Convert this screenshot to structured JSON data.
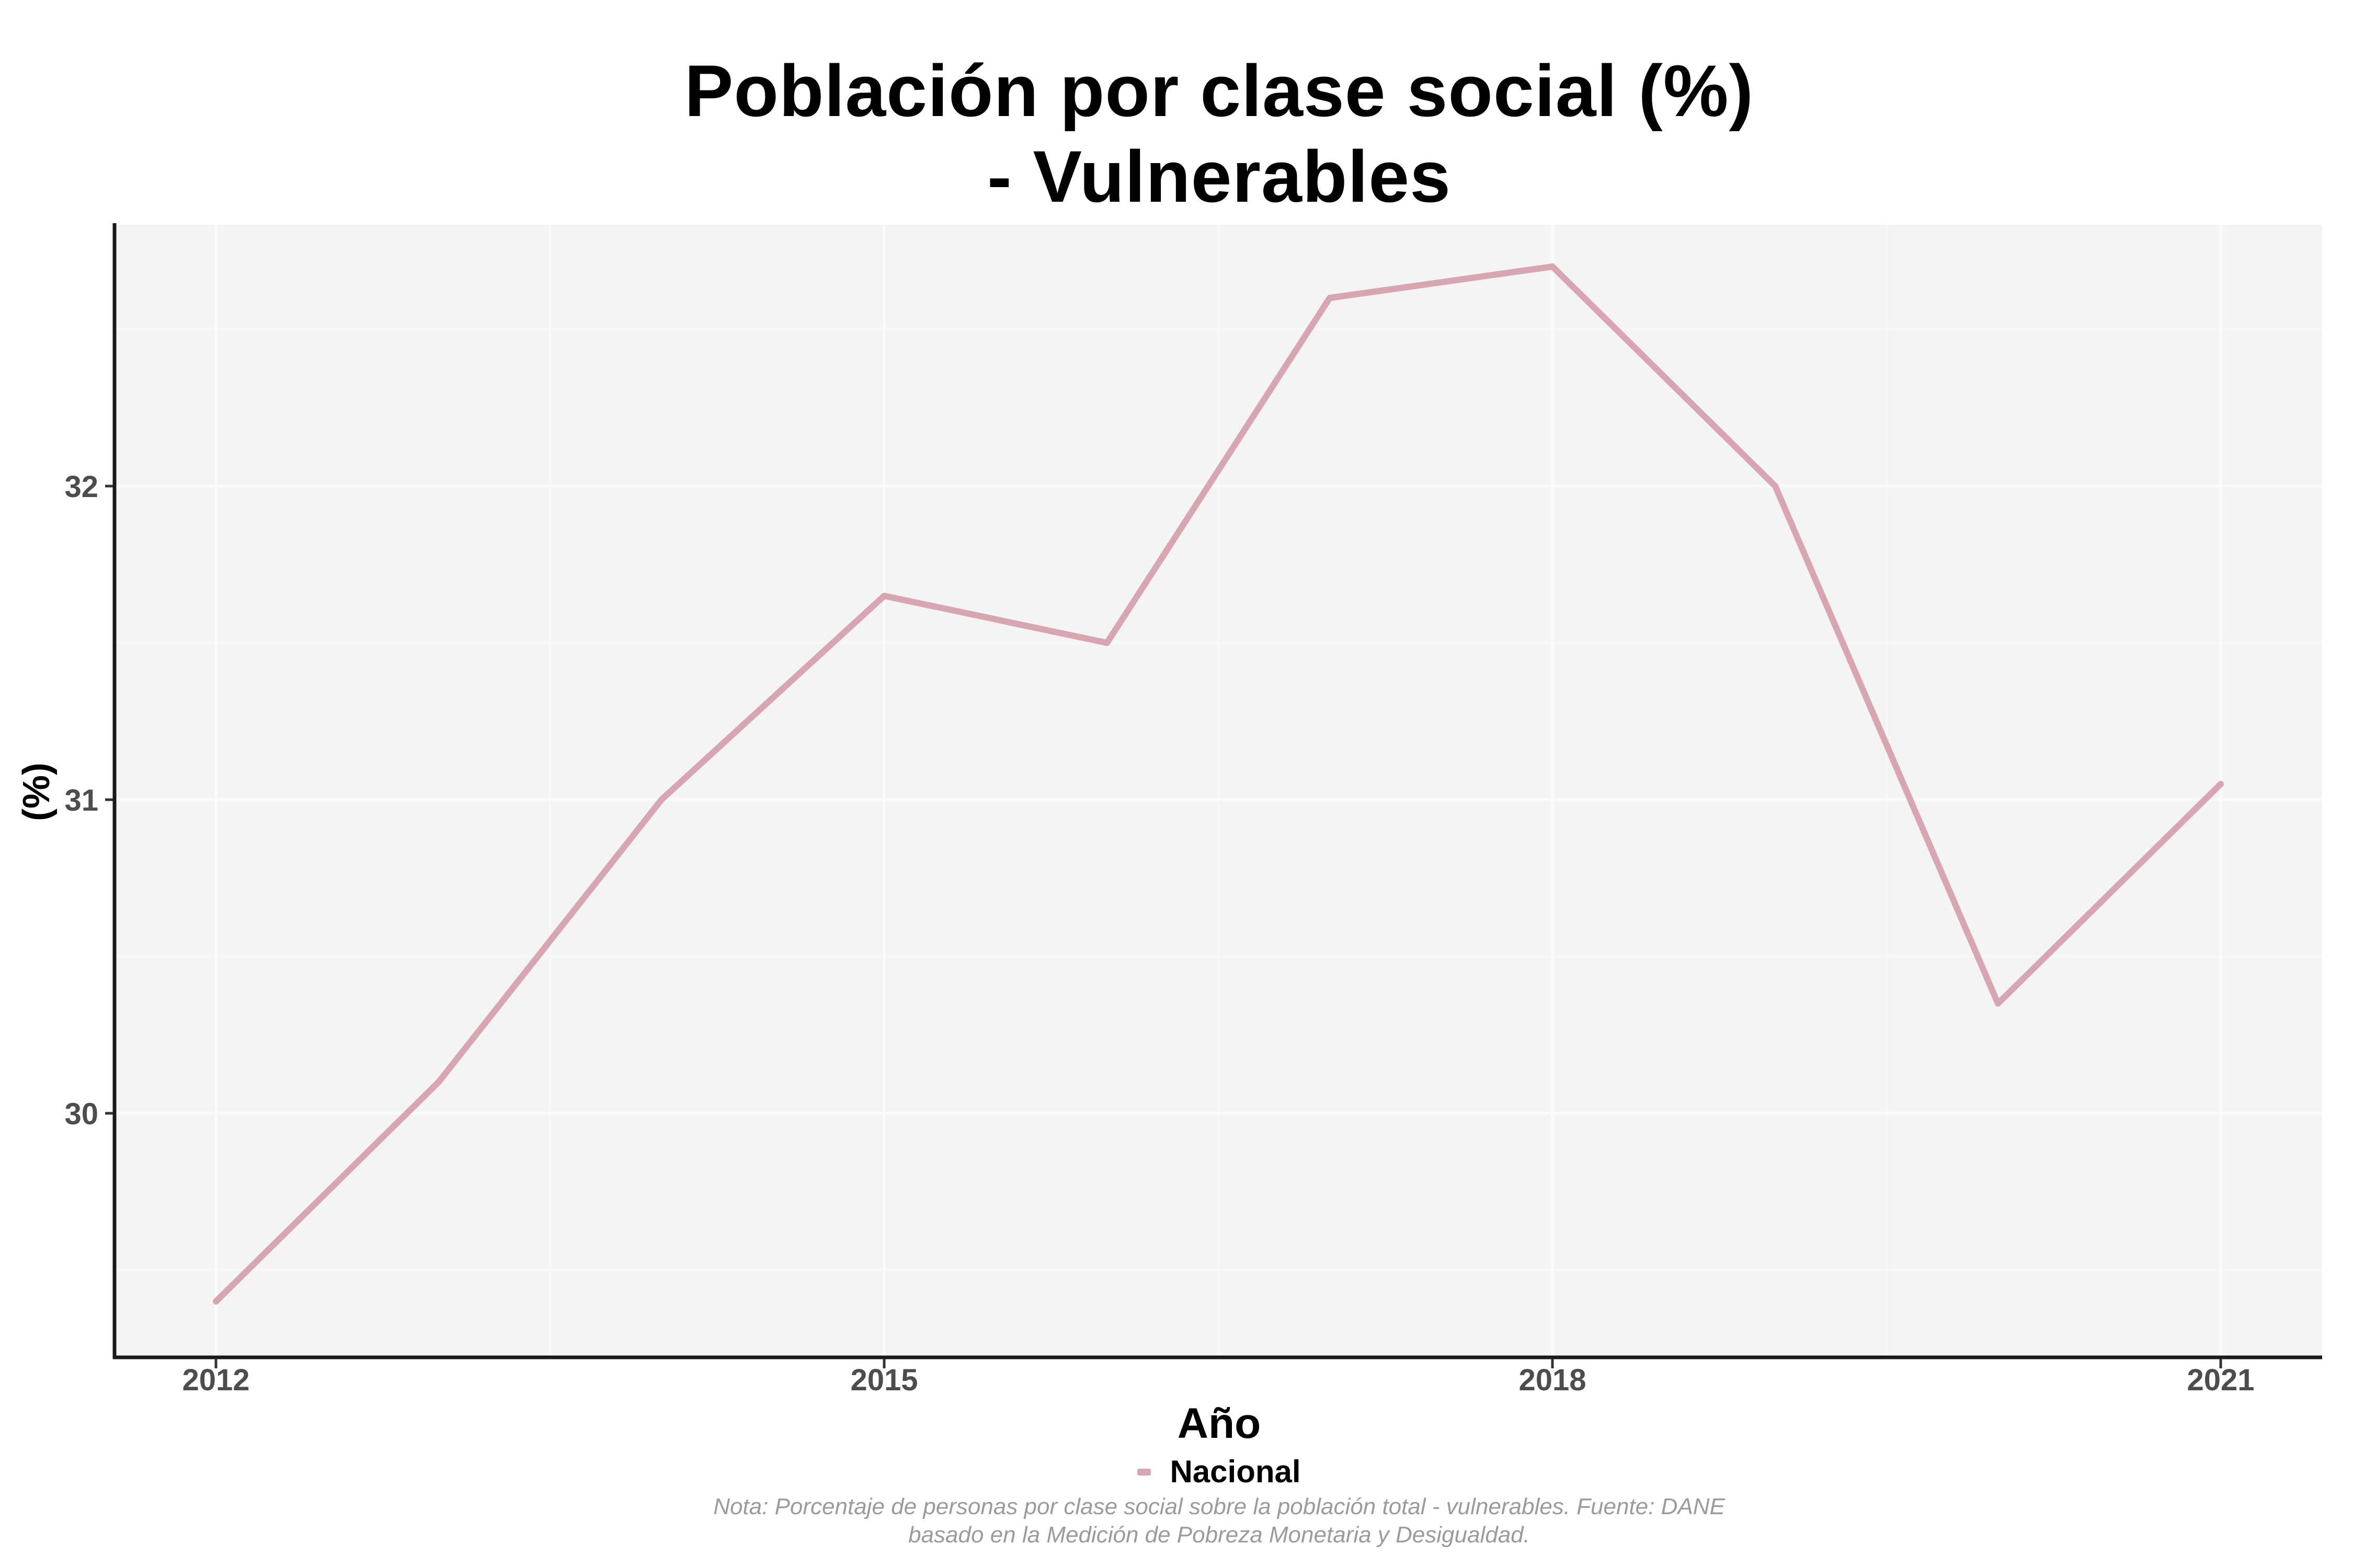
{
  "title": {
    "line1": "Población por clase social (%)",
    "line2": "- Vulnerables"
  },
  "legend": {
    "label": "Nacional"
  },
  "footnote": {
    "line1": "Nota: Porcentaje de personas por clase social sobre la población total - vulnerables. Fuente: DANE",
    "line2": "basado en la Medición de Pobreza Monetaria y Desigualdad."
  },
  "colors": {
    "line": "#d8a6b0",
    "panel_background": "#f4f4f4",
    "grid_major": "#fbfbfb",
    "grid_minor": "#f8f8f8",
    "axis_line": "#1a1a1a",
    "tick_mark": "#333333",
    "tick_label": "#4d4d4d",
    "title_text": "#000000",
    "footnote_text": "#9b9b9b"
  },
  "chart_data": {
    "type": "line",
    "title": "Población por clase social (%) - Vulnerables",
    "xlabel": "Año",
    "ylabel": "(%)",
    "x": [
      2012,
      2013,
      2014,
      2015,
      2016,
      2017,
      2018,
      2019,
      2020,
      2021
    ],
    "series": [
      {
        "name": "Nacional",
        "values": [
          29.4,
          30.1,
          31.0,
          31.65,
          31.5,
          32.6,
          32.7,
          32.0,
          30.35,
          31.05
        ]
      }
    ],
    "x_major_ticks": [
      2012,
      2015,
      2018,
      2021
    ],
    "x_minor_ticks": [
      2013.5,
      2016.5,
      2019.5
    ],
    "y_major_ticks": [
      30,
      31,
      32
    ],
    "y_minor_ticks": [
      29.5,
      30.5,
      31.5,
      32.5
    ],
    "ylim": [
      29.22,
      32.83
    ],
    "xlim": [
      2011.55,
      2021.46
    ],
    "grid": "on (white major/minor gridlines over light gray panel)",
    "legend_position": "bottom-center"
  }
}
